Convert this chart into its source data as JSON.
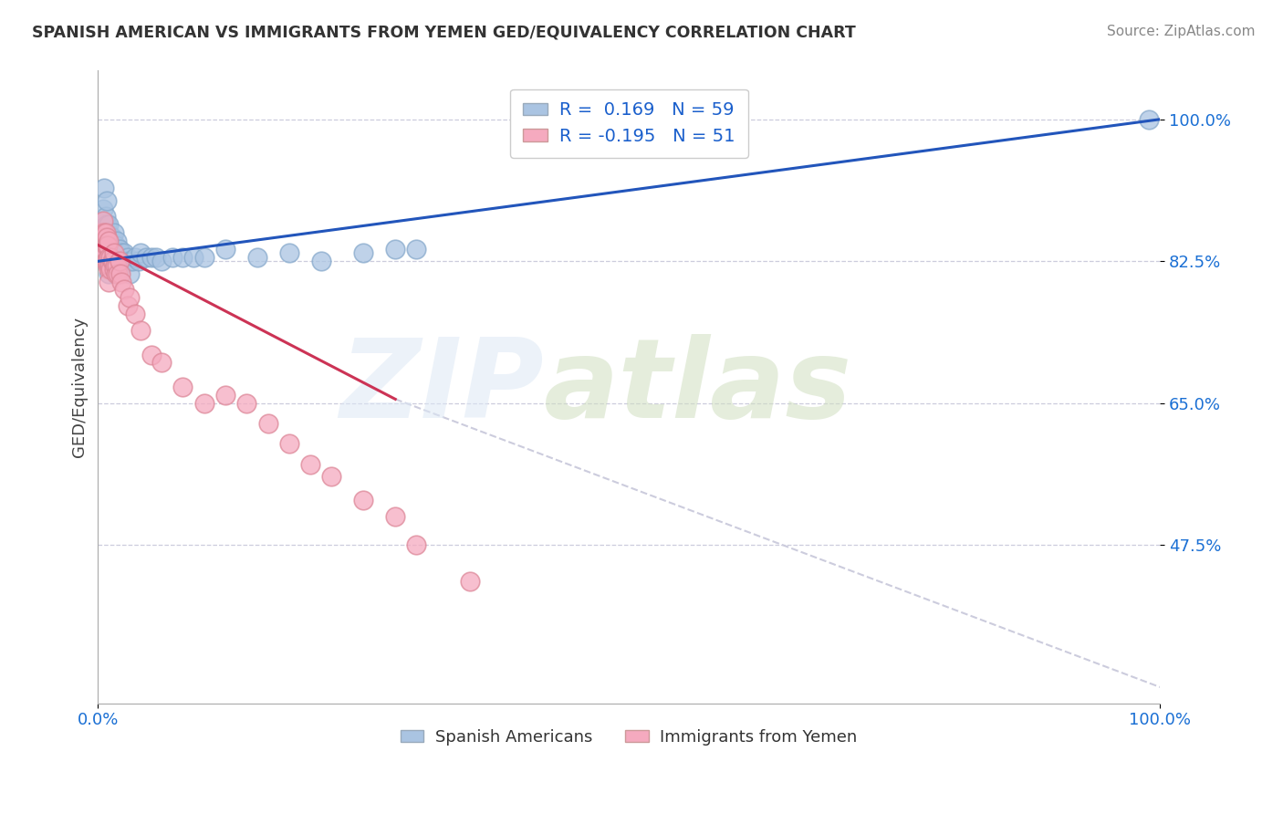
{
  "title": "SPANISH AMERICAN VS IMMIGRANTS FROM YEMEN GED/EQUIVALENCY CORRELATION CHART",
  "source": "Source: ZipAtlas.com",
  "ylabel": "GED/Equivalency",
  "xlim": [
    0.0,
    1.0
  ],
  "ylim": [
    0.28,
    1.06
  ],
  "yticks": [
    0.475,
    0.65,
    0.825,
    1.0
  ],
  "ytick_labels": [
    "47.5%",
    "65.0%",
    "82.5%",
    "100.0%"
  ],
  "xticks": [
    0.0,
    1.0
  ],
  "xtick_labels": [
    "0.0%",
    "100.0%"
  ],
  "blue_R": 0.169,
  "blue_N": 59,
  "pink_R": -0.195,
  "pink_N": 51,
  "blue_color": "#aac4e2",
  "pink_color": "#f5aabf",
  "blue_line_color": "#2255bb",
  "pink_line_color": "#cc3355",
  "dashed_line_color": "#ccccdd",
  "legend_label_blue": "Spanish Americans",
  "legend_label_pink": "Immigrants from Yemen",
  "blue_line_x0": 0.0,
  "blue_line_y0": 0.825,
  "blue_line_x1": 1.0,
  "blue_line_y1": 1.0,
  "pink_line_x0": 0.0,
  "pink_line_y0": 0.845,
  "pink_line_x1": 0.28,
  "pink_line_y1": 0.655,
  "dashed_line_x0": 0.28,
  "dashed_line_y0": 0.655,
  "dashed_line_x1": 1.0,
  "dashed_line_y1": 0.3,
  "blue_x": [
    0.004,
    0.004,
    0.005,
    0.006,
    0.006,
    0.007,
    0.007,
    0.008,
    0.008,
    0.008,
    0.009,
    0.009,
    0.01,
    0.01,
    0.01,
    0.01,
    0.012,
    0.012,
    0.013,
    0.013,
    0.014,
    0.015,
    0.015,
    0.016,
    0.016,
    0.017,
    0.018,
    0.018,
    0.019,
    0.02,
    0.02,
    0.021,
    0.022,
    0.023,
    0.025,
    0.026,
    0.028,
    0.03,
    0.03,
    0.032,
    0.035,
    0.038,
    0.04,
    0.045,
    0.05,
    0.055,
    0.06,
    0.07,
    0.08,
    0.09,
    0.1,
    0.12,
    0.15,
    0.18,
    0.21,
    0.25,
    0.28,
    0.3,
    0.99
  ],
  "blue_y": [
    0.875,
    0.855,
    0.89,
    0.86,
    0.915,
    0.84,
    0.88,
    0.84,
    0.87,
    0.9,
    0.86,
    0.835,
    0.87,
    0.845,
    0.825,
    0.81,
    0.855,
    0.83,
    0.855,
    0.84,
    0.845,
    0.86,
    0.835,
    0.835,
    0.815,
    0.845,
    0.85,
    0.82,
    0.825,
    0.84,
    0.815,
    0.825,
    0.835,
    0.825,
    0.835,
    0.825,
    0.83,
    0.825,
    0.81,
    0.825,
    0.83,
    0.825,
    0.835,
    0.83,
    0.83,
    0.83,
    0.825,
    0.83,
    0.83,
    0.83,
    0.83,
    0.84,
    0.83,
    0.835,
    0.825,
    0.835,
    0.84,
    0.84,
    1.0
  ],
  "pink_x": [
    0.003,
    0.004,
    0.005,
    0.005,
    0.006,
    0.006,
    0.007,
    0.007,
    0.007,
    0.008,
    0.008,
    0.008,
    0.009,
    0.009,
    0.01,
    0.01,
    0.01,
    0.01,
    0.011,
    0.012,
    0.012,
    0.013,
    0.014,
    0.015,
    0.015,
    0.016,
    0.017,
    0.018,
    0.019,
    0.02,
    0.021,
    0.022,
    0.025,
    0.028,
    0.03,
    0.035,
    0.04,
    0.05,
    0.06,
    0.08,
    0.1,
    0.12,
    0.14,
    0.16,
    0.18,
    0.2,
    0.22,
    0.25,
    0.28,
    0.3,
    0.35
  ],
  "pink_y": [
    0.86,
    0.845,
    0.875,
    0.855,
    0.86,
    0.84,
    0.86,
    0.845,
    0.825,
    0.855,
    0.845,
    0.825,
    0.845,
    0.82,
    0.85,
    0.83,
    0.815,
    0.8,
    0.82,
    0.83,
    0.815,
    0.825,
    0.825,
    0.835,
    0.815,
    0.82,
    0.81,
    0.82,
    0.81,
    0.825,
    0.81,
    0.8,
    0.79,
    0.77,
    0.78,
    0.76,
    0.74,
    0.71,
    0.7,
    0.67,
    0.65,
    0.66,
    0.65,
    0.625,
    0.6,
    0.575,
    0.56,
    0.53,
    0.51,
    0.475,
    0.43
  ],
  "background_color": "#ffffff"
}
